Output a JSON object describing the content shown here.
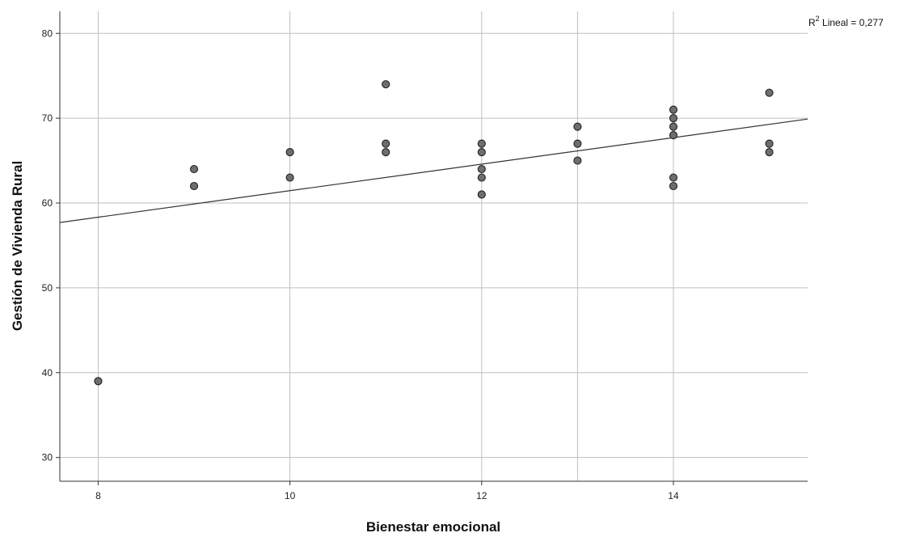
{
  "chart_data": {
    "type": "scatter",
    "title": "",
    "xlabel": "Bienestar emocional",
    "ylabel": "Gestión de Vivienda Rural",
    "xlim": [
      7.6,
      15.4
    ],
    "ylim": [
      27.2,
      82.6
    ],
    "x_ticks": [
      8,
      10,
      12,
      14
    ],
    "x_tick_labels": [
      "8",
      "10",
      "12",
      "14"
    ],
    "y_ticks": [
      30,
      40,
      50,
      60,
      70,
      80
    ],
    "y_tick_labels": [
      "30",
      "40",
      "50",
      "60",
      "70",
      "80"
    ],
    "x_gridlines": [
      8,
      10,
      12,
      13,
      14
    ],
    "grid": true,
    "points": [
      {
        "x": 8,
        "y": 39
      },
      {
        "x": 9,
        "y": 64
      },
      {
        "x": 9,
        "y": 62
      },
      {
        "x": 10,
        "y": 66
      },
      {
        "x": 10,
        "y": 63
      },
      {
        "x": 11,
        "y": 74
      },
      {
        "x": 11,
        "y": 67
      },
      {
        "x": 11,
        "y": 66
      },
      {
        "x": 12,
        "y": 67
      },
      {
        "x": 12,
        "y": 66
      },
      {
        "x": 12,
        "y": 64
      },
      {
        "x": 12,
        "y": 63
      },
      {
        "x": 12,
        "y": 61
      },
      {
        "x": 13,
        "y": 69
      },
      {
        "x": 13,
        "y": 67
      },
      {
        "x": 13,
        "y": 65
      },
      {
        "x": 14,
        "y": 71
      },
      {
        "x": 14,
        "y": 70
      },
      {
        "x": 14,
        "y": 69
      },
      {
        "x": 14,
        "y": 68
      },
      {
        "x": 14,
        "y": 63
      },
      {
        "x": 14,
        "y": 62
      },
      {
        "x": 15,
        "y": 73
      },
      {
        "x": 15,
        "y": 67
      },
      {
        "x": 15,
        "y": 66
      }
    ],
    "fit_line": {
      "type": "linear",
      "x": [
        7.6,
        15.4
      ],
      "y": [
        57.7,
        69.9
      ]
    },
    "r2_label": {
      "prefix": "R",
      "superscript": "2",
      "suffix": " Lineal = 0,277"
    },
    "marker_fill": "#6e6e6e",
    "marker_stroke": "#2a2a2a",
    "grid_color": "#bfbfbf",
    "axis_color": "#333333",
    "line_color": "#333333"
  }
}
